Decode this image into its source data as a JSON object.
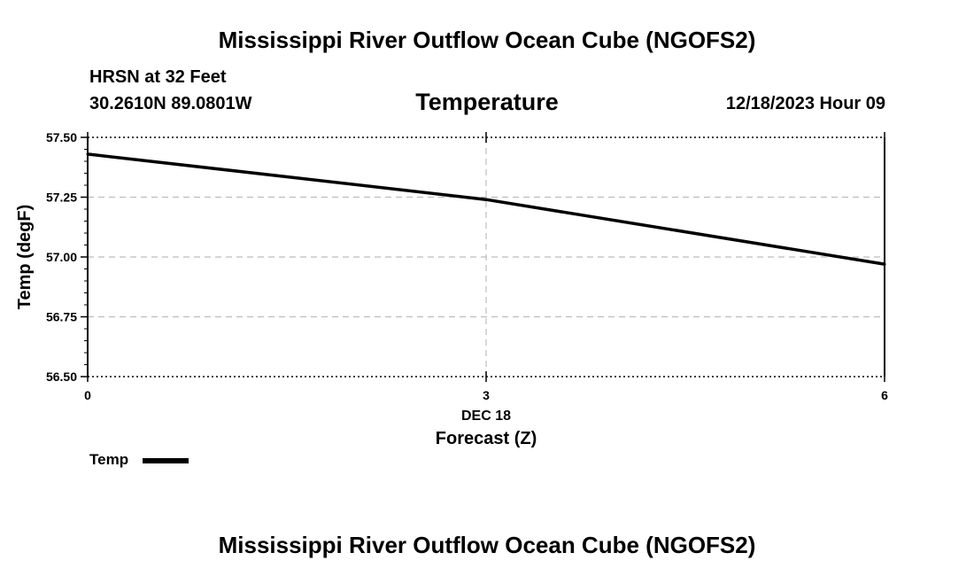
{
  "page": {
    "title_top": "Mississippi River Outflow Ocean Cube (NGOFS2)",
    "title_bottom": "Mississippi River Outflow Ocean Cube (NGOFS2)",
    "station": "HRSN at 32 Feet",
    "coords": "30.2610N  89.0801W",
    "valid_time": "12/18/2023 Hour 09"
  },
  "chart_data": {
    "type": "line",
    "title": "Temperature",
    "xlabel": "Forecast (Z)",
    "ylabel": "Temp (degF)",
    "x_date_label": "DEC 18",
    "xlim": [
      0,
      6
    ],
    "ylim": [
      56.5,
      57.5
    ],
    "x_ticks": [
      0,
      3,
      6
    ],
    "x_tick_labels": [
      "0",
      "3",
      "6"
    ],
    "y_ticks": [
      56.5,
      56.75,
      57.0,
      57.25,
      57.5
    ],
    "y_tick_labels": [
      "56.50",
      "56.75",
      "57.00",
      "57.25",
      "57.50"
    ],
    "grid": true,
    "legend_position": "bottom-left",
    "series": [
      {
        "name": "Temp",
        "color": "#000000",
        "x": [
          0,
          3,
          6
        ],
        "values": [
          57.43,
          57.24,
          56.97
        ]
      }
    ]
  }
}
